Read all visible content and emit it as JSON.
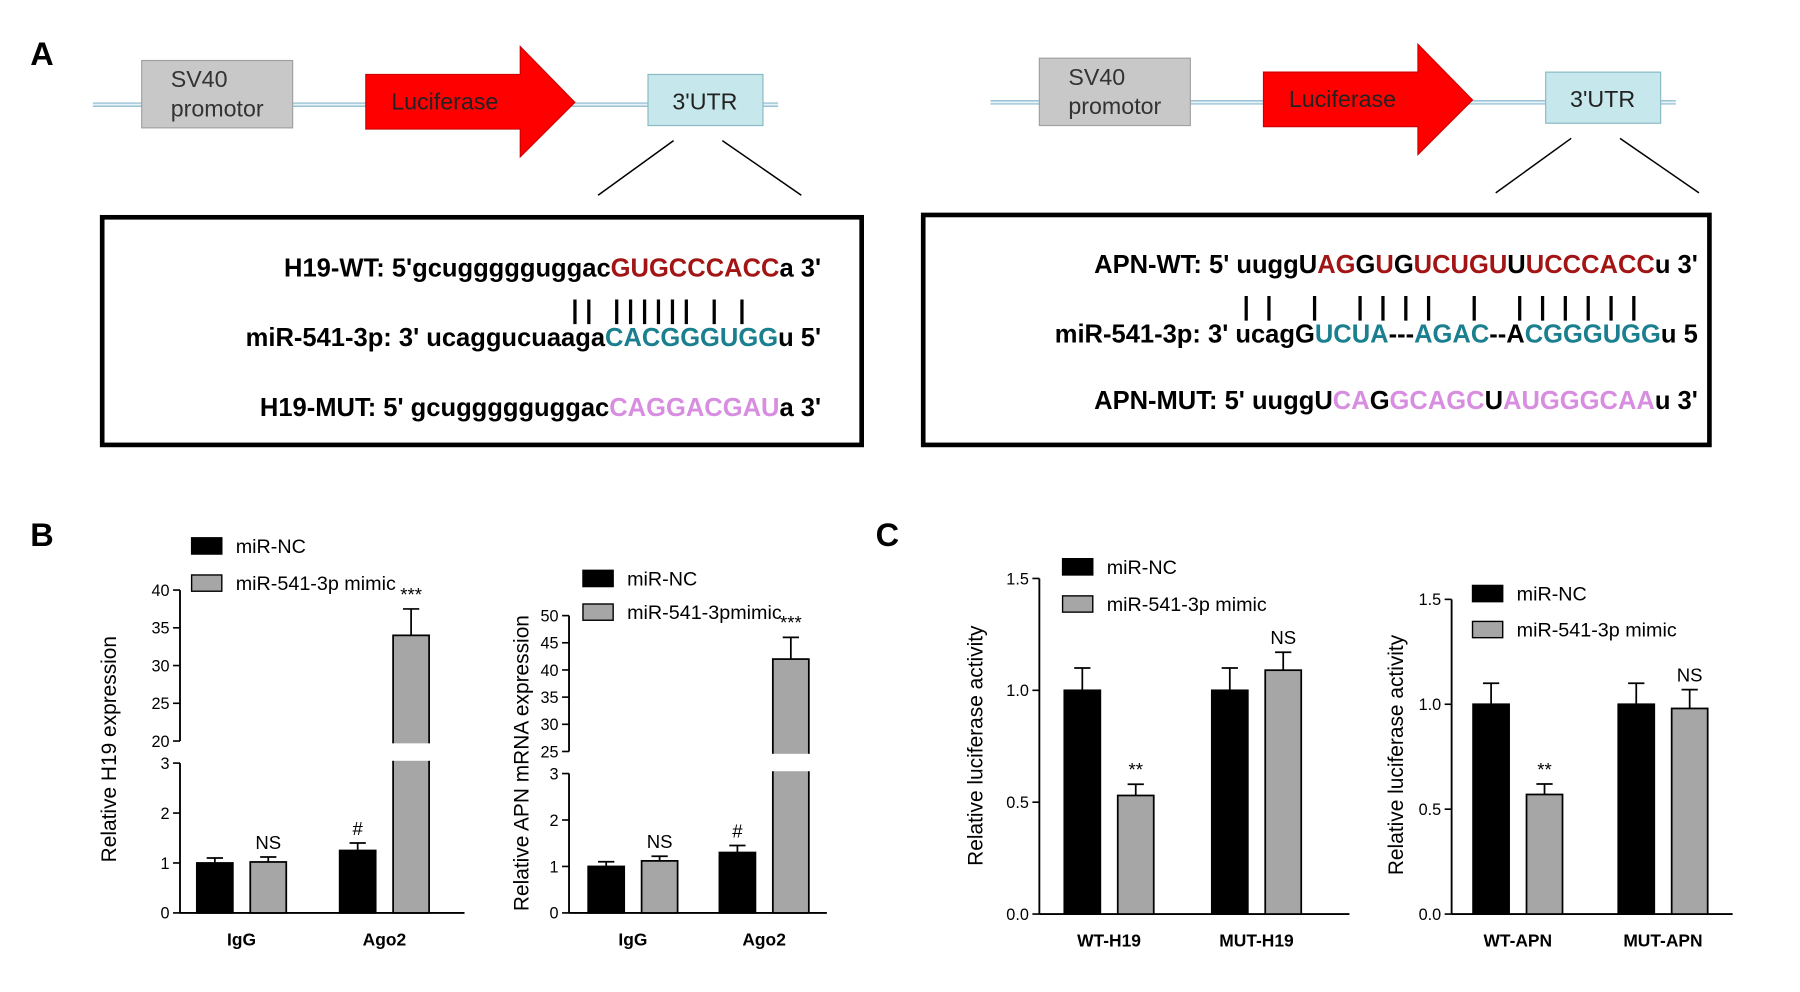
{
  "panel_labels": [
    "A",
    "B",
    "C"
  ],
  "constructs": [
    {
      "promoter": [
        "SV40",
        "promotor"
      ],
      "gene": "Luciferase",
      "utr": "3'UTR",
      "wt": [
        {
          "text": "H19-WT: 5'gcuggggguggac",
          "color": "#000000"
        },
        {
          "text": "GUGCCCACC",
          "color": "#a31515"
        },
        {
          "text": "a 3'",
          "color": "#000000"
        }
      ],
      "pairing": "|| |||||| | |",
      "mir": [
        {
          "text": "miR-541-3p: 3' ucaggucuaaga",
          "color": "#000000"
        },
        {
          "text": "CACGGGUGG",
          "color": "#1a7f8e"
        },
        {
          "text": "u 5'",
          "color": "#000000"
        }
      ],
      "mut": [
        {
          "text": "H19-MUT: 5' gcuggggguggac",
          "color": "#000000"
        },
        {
          "text": "CAGGACGAU",
          "color": "#d88ee0"
        },
        {
          "text": "a 3'",
          "color": "#000000"
        }
      ]
    },
    {
      "promoter": [
        "SV40",
        "promotor"
      ],
      "gene": "Luciferase",
      "utr": "3'UTR",
      "wt": [
        {
          "text": "APN-WT: 5' uuggU",
          "color": "#000000"
        },
        {
          "text": "AG",
          "color": "#a31515"
        },
        {
          "text": "G",
          "color": "#000000"
        },
        {
          "text": "U",
          "color": "#a31515"
        },
        {
          "text": "G",
          "color": "#000000"
        },
        {
          "text": "UCUGU",
          "color": "#a31515"
        },
        {
          "text": "U",
          "color": "#000000"
        },
        {
          "text": "UCCCACC",
          "color": "#a31515"
        },
        {
          "text": "u 3'",
          "color": "#000000"
        }
      ],
      "pairing": "||  |  ||||  |  ||||||",
      "mir": [
        {
          "text": "miR-541-3p: 3' ucagG",
          "color": "#000000"
        },
        {
          "text": "UCUA",
          "color": "#1a7f8e"
        },
        {
          "text": "---",
          "color": "#000000"
        },
        {
          "text": "AGAC",
          "color": "#1a7f8e"
        },
        {
          "text": "--A",
          "color": "#000000"
        },
        {
          "text": "CGGGUGG",
          "color": "#1a7f8e"
        },
        {
          "text": "u 5",
          "color": "#000000"
        }
      ],
      "mut": [
        {
          "text": "APN-MUT: 5' uuggU",
          "color": "#000000"
        },
        {
          "text": "CA",
          "color": "#d88ee0"
        },
        {
          "text": "G",
          "color": "#000000"
        },
        {
          "text": "GCAGC",
          "color": "#d88ee0"
        },
        {
          "text": "U",
          "color": "#000000"
        },
        {
          "text": "AUGGGCAA",
          "color": "#d88ee0"
        },
        {
          "text": "u 3'",
          "color": "#000000"
        }
      ]
    }
  ],
  "chart_data": [
    {
      "type": "bar",
      "y_label": "Relative H19 expression",
      "categories": [
        "IgG",
        "Ago2"
      ],
      "ylim": [
        0,
        40
      ],
      "ybreak": [
        3,
        20
      ],
      "yticks": [
        0,
        1,
        2,
        3,
        20,
        25,
        30,
        35,
        40
      ],
      "series": [
        {
          "name": "miR-NC",
          "color": "#000000",
          "values": [
            1.0,
            1.25
          ],
          "errors": [
            0.1,
            0.15
          ],
          "annotations": [
            null,
            "#"
          ]
        },
        {
          "name": "miR-541-3p mimic",
          "color": "#a6a6a6",
          "values": [
            1.02,
            34
          ],
          "errors": [
            0.1,
            3.5
          ],
          "annotations": [
            "NS",
            "***"
          ]
        }
      ]
    },
    {
      "type": "bar",
      "y_label": "Relative APN mRNA expression",
      "categories": [
        "IgG",
        "Ago2"
      ],
      "ylim": [
        0,
        50
      ],
      "ybreak": [
        3,
        25
      ],
      "yticks": [
        0,
        1,
        2,
        3,
        25,
        30,
        35,
        40,
        45,
        50
      ],
      "series": [
        {
          "name": "miR-NC",
          "color": "#000000",
          "values": [
            1.0,
            1.3
          ],
          "errors": [
            0.1,
            0.15
          ],
          "annotations": [
            null,
            "#"
          ]
        },
        {
          "name": "miR-541-3pmimic",
          "color": "#a6a6a6",
          "values": [
            1.12,
            42
          ],
          "errors": [
            0.1,
            4
          ],
          "annotations": [
            "NS",
            "***"
          ]
        }
      ]
    },
    {
      "type": "bar",
      "y_label": "Relative luciferase activity",
      "categories": [
        "WT-H19",
        "MUT-H19"
      ],
      "ylim": [
        0,
        1.5
      ],
      "yticks": [
        {
          "value": 0,
          "label": "0.0"
        },
        0.5,
        {
          "value": 1,
          "label": "1.0"
        },
        1.5
      ],
      "series": [
        {
          "name": "miR-NC",
          "color": "#000000",
          "values": [
            1.0,
            1.0
          ],
          "errors": [
            0.1,
            0.1
          ],
          "annotations": [
            null,
            null
          ]
        },
        {
          "name": "miR-541-3p mimic",
          "color": "#a6a6a6",
          "values": [
            0.53,
            1.09
          ],
          "errors": [
            0.05,
            0.08
          ],
          "annotations": [
            "**",
            "NS"
          ]
        }
      ]
    },
    {
      "type": "bar",
      "y_label": "Relative luciferase activity",
      "categories": [
        "WT-APN",
        "MUT-APN"
      ],
      "ylim": [
        0,
        1.5
      ],
      "yticks": [
        {
          "value": 0,
          "label": "0.0"
        },
        0.5,
        {
          "value": 1,
          "label": "1.0"
        },
        1.5
      ],
      "series": [
        {
          "name": "miR-NC",
          "color": "#000000",
          "values": [
            1.0,
            1.0
          ],
          "errors": [
            0.1,
            0.1
          ],
          "annotations": [
            null,
            null
          ]
        },
        {
          "name": "miR-541-3p mimic",
          "color": "#a6a6a6",
          "values": [
            0.57,
            0.98
          ],
          "errors": [
            0.05,
            0.09
          ],
          "annotations": [
            "**",
            "NS"
          ]
        }
      ]
    }
  ]
}
